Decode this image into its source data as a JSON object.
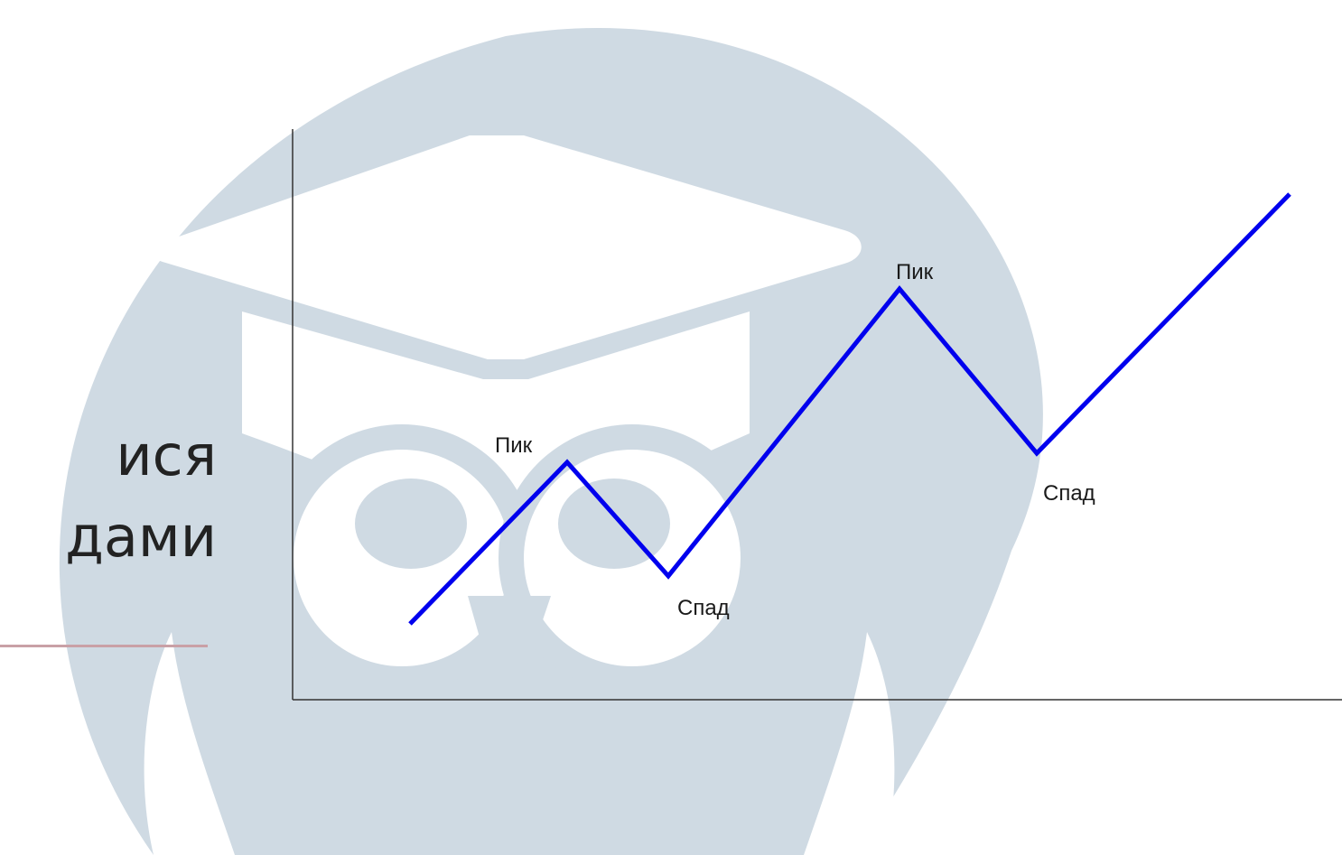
{
  "slide": {
    "title_lines": [
      "ися",
      "дами"
    ]
  },
  "watermark": {
    "icon": "owl-graduation-cap-logo",
    "color": "#cfdae3"
  },
  "diagram": {
    "line_color": "#0000ee",
    "axis_color": "#333333",
    "labels": [
      {
        "text": "Пик",
        "kind": "peak"
      },
      {
        "text": "Спад",
        "kind": "trough"
      },
      {
        "text": "Пик",
        "kind": "peak"
      },
      {
        "text": "Спад",
        "kind": "trough"
      }
    ]
  }
}
